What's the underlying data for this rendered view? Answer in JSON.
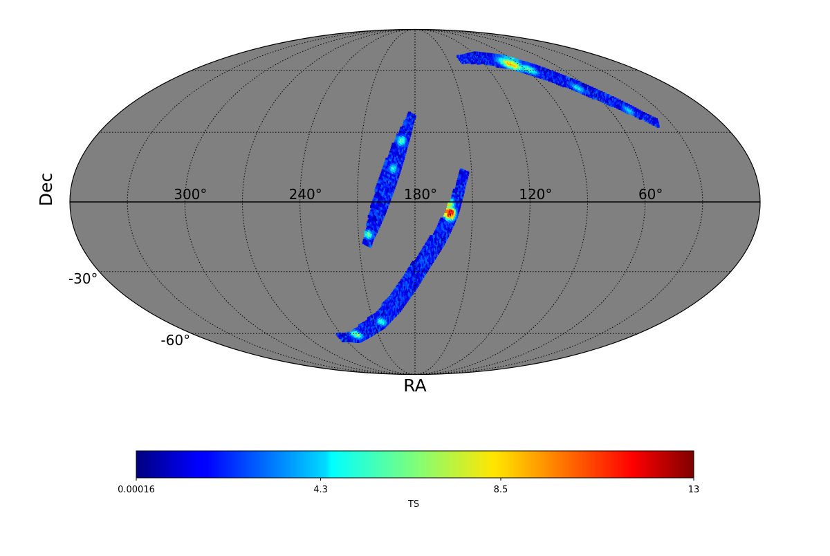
{
  "chart_data": {
    "type": "heatmap",
    "projection": "mollweide",
    "xlabel": "RA",
    "ylabel": "Dec",
    "ra_ticks": [
      {
        "value": 300,
        "label": "300°"
      },
      {
        "value": 240,
        "label": "240°"
      },
      {
        "value": 180,
        "label": "180°"
      },
      {
        "value": 120,
        "label": "120°"
      },
      {
        "value": 60,
        "label": "60°"
      }
    ],
    "dec_ticks": [
      {
        "value": -30,
        "label": "-30°"
      },
      {
        "value": -60,
        "label": "-60°"
      }
    ],
    "graticule_ra_step": 30,
    "graticule_dec": [
      -60,
      -30,
      30,
      60
    ],
    "background_color": "#808080",
    "colorbar": {
      "label": "TS",
      "colormap": "jet",
      "min": 0.00016,
      "max": 13,
      "ticks": [
        {
          "value": 0.00016,
          "label": "0.00016"
        },
        {
          "value": 4.3,
          "label": "4.3"
        },
        {
          "value": 8.5,
          "label": "8.5"
        },
        {
          "value": 13,
          "label": "13"
        }
      ]
    },
    "arcs": [
      {
        "name": "arc-left",
        "path": [
          [
            -178,
            38
          ],
          [
            -172,
            25
          ],
          [
            -166,
            10
          ],
          [
            -160,
            -5
          ],
          [
            -154,
            -18
          ]
        ]
      },
      {
        "name": "arc-center",
        "path": [
          [
            154,
            13
          ],
          [
            157,
            5
          ],
          [
            161,
            -5
          ],
          [
            167,
            -15
          ],
          [
            175,
            -25
          ],
          [
            183,
            -35
          ],
          [
            193,
            -45
          ],
          [
            205,
            -53
          ],
          [
            218,
            -58
          ],
          [
            230,
            -62
          ],
          [
            243,
            -62
          ]
        ]
      },
      {
        "name": "arc-top",
        "path": [
          [
            138,
            66
          ],
          [
            118,
            67
          ],
          [
            95,
            64
          ],
          [
            78,
            58
          ],
          [
            63,
            50
          ],
          [
            50,
            42
          ],
          [
            38,
            34
          ]
        ]
      }
    ],
    "hotspots": [
      {
        "ra": 162,
        "dec": -5,
        "ts": 12.5,
        "r": 2.2
      },
      {
        "ra": 163,
        "dec": -1,
        "ts": 8.0,
        "r": 2.5
      },
      {
        "ra": 95,
        "dec": 64,
        "ts": 8.8,
        "r": 3.0
      },
      {
        "ra": 86,
        "dec": 61,
        "ts": 6.0,
        "r": 2.5
      },
      {
        "ra": -172,
        "dec": 26,
        "ts": 6.0,
        "r": 2.0
      },
      {
        "ra": -168,
        "dec": 14,
        "ts": 5.5,
        "r": 1.8
      },
      {
        "ra": -155,
        "dec": -14,
        "ts": 6.5,
        "r": 1.6
      },
      {
        "ra": 229,
        "dec": -61,
        "ts": 6.5,
        "r": 2.0
      },
      {
        "ra": 205,
        "dec": -54,
        "ts": 5.5,
        "r": 1.8
      },
      {
        "ra": 66,
        "dec": 51,
        "ts": 5.0,
        "r": 2.0
      },
      {
        "ra": 48,
        "dec": 40,
        "ts": 4.5,
        "r": 2.0
      }
    ]
  }
}
